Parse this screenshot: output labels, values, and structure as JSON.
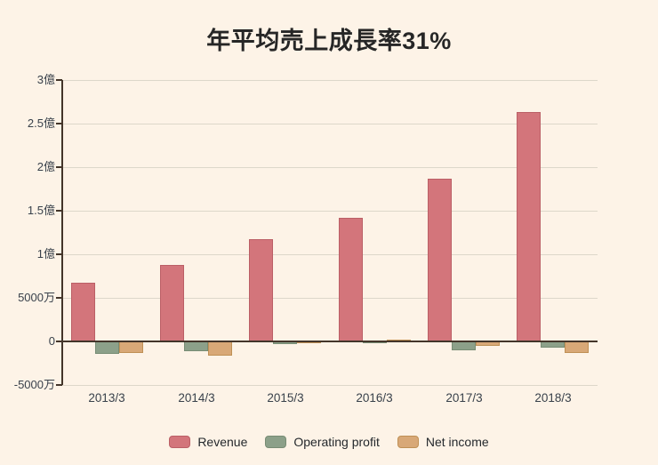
{
  "page": {
    "background_color": "#fdf3e7"
  },
  "title": "年平均売上成長率31%",
  "chart_data": {
    "type": "bar",
    "title": "年平均売上成長率31%",
    "unit": "億円 (values in 億 = 100 million yen)",
    "categories": [
      "2013/3",
      "2014/3",
      "2015/3",
      "2016/3",
      "2017/3",
      "2018/3"
    ],
    "series": [
      {
        "name": "Revenue",
        "color": "#d3757b",
        "border_color": "#bb5f66",
        "values": [
          0.67,
          0.88,
          1.17,
          1.42,
          1.87,
          2.63
        ]
      },
      {
        "name": "Operating profit",
        "color": "#8ca089",
        "border_color": "#778c74",
        "values": [
          -0.14,
          -0.11,
          -0.03,
          -0.02,
          -0.1,
          -0.07
        ]
      },
      {
        "name": "Net income",
        "color": "#d8a877",
        "border_color": "#bf9055",
        "values": [
          -0.13,
          -0.16,
          -0.01,
          0.02,
          -0.05,
          -0.13
        ]
      }
    ],
    "y_ticks": [
      {
        "value": 3,
        "label": "3億"
      },
      {
        "value": 2.5,
        "label": "2.5億"
      },
      {
        "value": 2,
        "label": "2億"
      },
      {
        "value": 1.5,
        "label": "1.5億"
      },
      {
        "value": 1,
        "label": "1億"
      },
      {
        "value": 0.5,
        "label": "5000万"
      },
      {
        "value": 0,
        "label": "0"
      },
      {
        "value": -0.5,
        "label": "-5000万"
      }
    ],
    "ylim": [
      -0.5,
      3
    ],
    "xlabel": "",
    "ylabel": "",
    "grid": true,
    "legend_position": "bottom",
    "accent_colors": {
      "background": "#fdf3e7",
      "axis": "#43352a",
      "gridline": "#ddd7ca",
      "tick_text": "#39414b",
      "title_text": "#262626",
      "legend_text": "#24282c"
    }
  }
}
